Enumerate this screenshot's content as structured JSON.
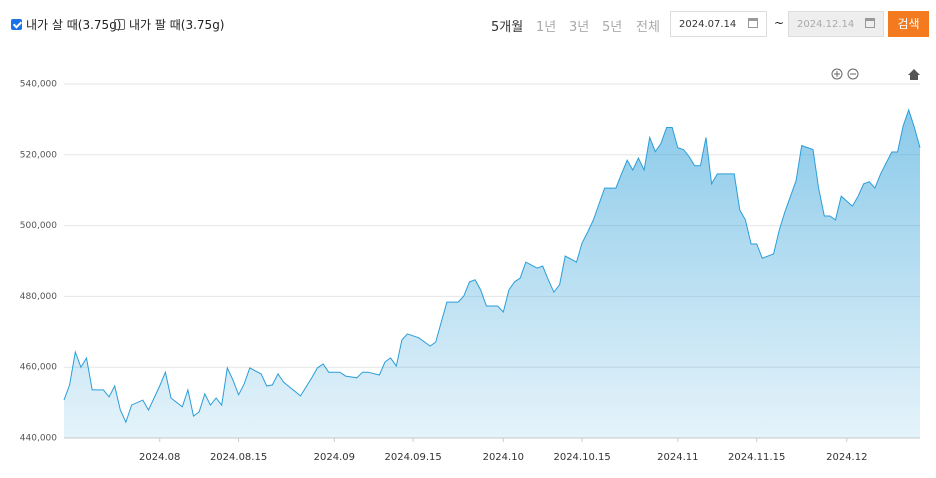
{
  "controls": {
    "buy_label": "내가 살 때(3.75g)",
    "buy_checked": true,
    "sell_label": "내가 팔 때(3.75g)",
    "sell_checked": false,
    "periods": [
      "5개월",
      "1년",
      "3년",
      "5년",
      "전체"
    ],
    "active_period": 0,
    "date_from": "2024.07.14",
    "separator": "~",
    "date_to": "2024.12.14",
    "search": "검색"
  },
  "chart_data": {
    "type": "area",
    "x": [
      "2024.07.15",
      "2024.07.16",
      "2024.07.17",
      "2024.07.18",
      "2024.07.19",
      "2024.07.20",
      "2024.07.22",
      "2024.07.23",
      "2024.07.24",
      "2024.07.25",
      "2024.07.26",
      "2024.07.27",
      "2024.07.29",
      "2024.07.30",
      "2024.08.01",
      "2024.08.02",
      "2024.08.03",
      "2024.08.05",
      "2024.08.06",
      "2024.08.07",
      "2024.08.08",
      "2024.08.09",
      "2024.08.10",
      "2024.08.11",
      "2024.08.12",
      "2024.08.13",
      "2024.08.14",
      "2024.08.15",
      "2024.08.16",
      "2024.08.17",
      "2024.08.19",
      "2024.08.20",
      "2024.08.21",
      "2024.08.22",
      "2024.08.23",
      "2024.08.26",
      "2024.08.28",
      "2024.08.29",
      "2024.08.30",
      "2024.08.31",
      "2024.09.02",
      "2024.09.03",
      "2024.09.05",
      "2024.09.06",
      "2024.09.07",
      "2024.09.09",
      "2024.09.10",
      "2024.09.11",
      "2024.09.12",
      "2024.09.13",
      "2024.09.14",
      "2024.09.16",
      "2024.09.18",
      "2024.09.19",
      "2024.09.20",
      "2024.09.21",
      "2024.09.23",
      "2024.09.24",
      "2024.09.25",
      "2024.09.26",
      "2024.09.27",
      "2024.09.28",
      "2024.09.30",
      "2024.10.01",
      "2024.10.02",
      "2024.10.03",
      "2024.10.04",
      "2024.10.05",
      "2024.10.07",
      "2024.10.08",
      "2024.10.09",
      "2024.10.10",
      "2024.10.11",
      "2024.10.12",
      "2024.10.14",
      "2024.10.15",
      "2024.10.16",
      "2024.10.17",
      "2024.10.18",
      "2024.10.19",
      "2024.10.21",
      "2024.10.22",
      "2024.10.23",
      "2024.10.24",
      "2024.10.25",
      "2024.10.26",
      "2024.10.27",
      "2024.10.28",
      "2024.10.29",
      "2024.10.30",
      "2024.10.31",
      "2024.11.01",
      "2024.11.02",
      "2024.11.03",
      "2024.11.04",
      "2024.11.05",
      "2024.11.06",
      "2024.11.07",
      "2024.11.08",
      "2024.11.11",
      "2024.11.12",
      "2024.11.13",
      "2024.11.14",
      "2024.11.15",
      "2024.11.16",
      "2024.11.18",
      "2024.11.19",
      "2024.11.20",
      "2024.11.21",
      "2024.11.22",
      "2024.11.23",
      "2024.11.25",
      "2024.11.26",
      "2024.11.27",
      "2024.11.28",
      "2024.11.29",
      "2024.11.30",
      "2024.12.02",
      "2024.12.03",
      "2024.12.04",
      "2024.12.05",
      "2024.12.06",
      "2024.12.07",
      "2024.12.09",
      "2024.12.10",
      "2024.12.11",
      "2024.12.12",
      "2024.12.13",
      "2024.12.14"
    ],
    "values": [
      450700,
      455000,
      464300,
      460000,
      462600,
      453600,
      453600,
      451600,
      454700,
      447900,
      444500,
      449300,
      450700,
      447900,
      454700,
      458600,
      451300,
      448800,
      453600,
      446200,
      447400,
      452500,
      449300,
      451300,
      449300,
      459800,
      456400,
      452200,
      455300,
      459800,
      458100,
      454700,
      455000,
      458100,
      455800,
      451900,
      457000,
      459800,
      460900,
      458600,
      458600,
      457500,
      457000,
      458600,
      458600,
      457800,
      461500,
      462600,
      460300,
      467700,
      469400,
      468300,
      466000,
      467100,
      472800,
      478400,
      478400,
      480100,
      484100,
      484700,
      481800,
      477300,
      477300,
      475600,
      481800,
      484100,
      485200,
      489700,
      488000,
      488600,
      484700,
      481200,
      483300,
      491400,
      489700,
      495100,
      498200,
      501600,
      506100,
      510600,
      510600,
      514600,
      518500,
      515700,
      519100,
      515700,
      524900,
      520900,
      523200,
      527700,
      527700,
      522000,
      521500,
      519500,
      516900,
      516900,
      524900,
      511800,
      514600,
      514600,
      504400,
      501600,
      494800,
      494800,
      490800,
      492000,
      498700,
      503800,
      508300,
      512700,
      522600,
      521500,
      510600,
      502700,
      502700,
      501600,
      508300,
      505500,
      508300,
      511800,
      512400,
      510600,
      514600,
      520800,
      520800,
      528100,
      532700,
      527700,
      522000
    ],
    "color": "#2b9ed8",
    "xlim": [
      "2024.07.15",
      "2024.12.14"
    ],
    "xticks": [
      {
        "value": "2024.08.01",
        "label": "2024.08"
      },
      "2024.08.15",
      {
        "value": "2024.09.01",
        "label": "2024.09"
      },
      "2024.09.15",
      {
        "value": "2024.10.01",
        "label": "2024.10"
      },
      "2024.10.15",
      {
        "value": "2024.11.01",
        "label": "2024.11"
      },
      "2024.11.15",
      {
        "value": "2024.12.01",
        "label": "2024.12"
      }
    ],
    "ylim": [
      440000,
      540000
    ],
    "yticks": [
      {
        "value": 440000,
        "label": "440,000"
      },
      {
        "value": 460000,
        "label": "460,000"
      },
      {
        "value": 480000,
        "label": "480,000"
      },
      {
        "value": 500000,
        "label": "500,000"
      },
      {
        "value": 520000,
        "label": "520,000"
      },
      {
        "value": 540000,
        "label": "540,000"
      }
    ],
    "grid": true
  }
}
